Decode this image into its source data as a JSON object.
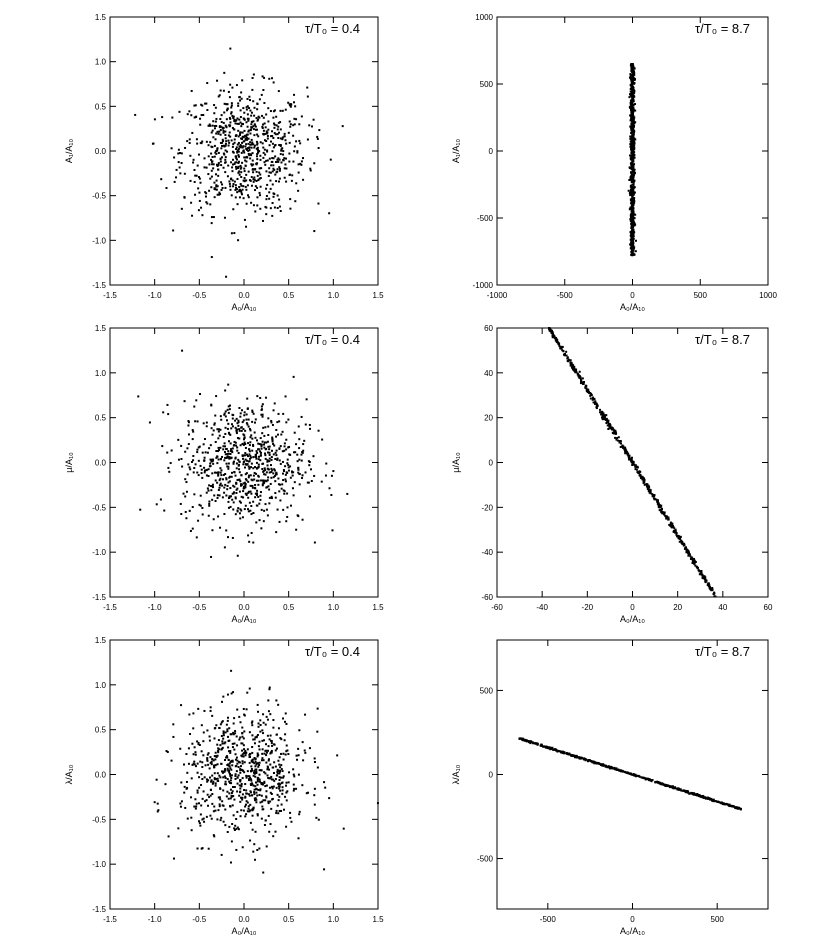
{
  "figure": {
    "panels": [
      {
        "id": "p1",
        "annotation": "τ/T₀ = 0.4",
        "xlabel": "A₀/A₁₀",
        "ylabel": "A₁/A₁₀"
      },
      {
        "id": "p2",
        "annotation": "τ/T₀ = 8.7",
        "xlabel": "A₀/A₁₀",
        "ylabel": "A₁/A₁₀"
      },
      {
        "id": "p3",
        "annotation": "τ/T₀ = 0.4",
        "xlabel": "A₀/A₁₀",
        "ylabel": "μ/A₁₀"
      },
      {
        "id": "p4",
        "annotation": "τ/T₀ = 8.7",
        "xlabel": "A₀/A₁₀",
        "ylabel": "μ/A₁₀"
      },
      {
        "id": "p5",
        "annotation": "τ/T₀ = 0.4",
        "xlabel": "A₀/A₁₀",
        "ylabel": "λ/A₁₀"
      },
      {
        "id": "p6",
        "annotation": "τ/T₀ = 8.7",
        "xlabel": "A₀/A₁₀",
        "ylabel": "λ/A₁₀"
      }
    ]
  },
  "chart_data": [
    {
      "type": "scatter",
      "title": "",
      "annotation": "τ/T₀ = 0.4",
      "xlabel": "A₀/A₁₀",
      "ylabel": "A₁/A₁₀",
      "xlim": [
        -1.5,
        1.5
      ],
      "ylim": [
        -1.5,
        1.5
      ],
      "xticks": [
        "-1.5",
        "-1.0",
        "-0.5",
        "0.0",
        "0.5",
        "1.0",
        "1.5"
      ],
      "yticks": [
        "-1.5",
        "-1.0",
        "-0.5",
        "0.0",
        "0.5",
        "1.0",
        "1.5"
      ],
      "grid": false,
      "distribution": {
        "shape": "isotropic cloud",
        "center": [
          0,
          0
        ],
        "spread": [
          0.35,
          0.35
        ],
        "n": 800
      }
    },
    {
      "type": "scatter",
      "title": "",
      "annotation": "τ/T₀ = 8.7",
      "xlabel": "A₀/A₁₀",
      "ylabel": "A₁/A₁₀",
      "xlim": [
        -1000,
        1000
      ],
      "ylim": [
        -1000,
        1000
      ],
      "xticks": [
        "-1000",
        "-500",
        "0",
        "500",
        "1000"
      ],
      "yticks": [
        "-1000",
        "-500",
        "0",
        "500",
        "1000"
      ],
      "grid": false,
      "distribution": {
        "shape": "narrow vertical band",
        "x_range": [
          -15,
          15
        ],
        "y_range": [
          -780,
          650
        ],
        "n": 800
      }
    },
    {
      "type": "scatter",
      "title": "",
      "annotation": "τ/T₀ = 0.4",
      "xlabel": "A₀/A₁₀",
      "ylabel": "μ/A₁₀",
      "xlim": [
        -1.5,
        1.5
      ],
      "ylim": [
        -1.5,
        1.5
      ],
      "xticks": [
        "-1.5",
        "-1.0",
        "-0.5",
        "0.0",
        "0.5",
        "1.0",
        "1.5"
      ],
      "yticks": [
        "-1.5",
        "-1.0",
        "-0.5",
        "0.0",
        "0.5",
        "1.0",
        "1.5"
      ],
      "grid": false,
      "distribution": {
        "shape": "isotropic cloud",
        "center": [
          0,
          0
        ],
        "spread": [
          0.35,
          0.35
        ],
        "n": 800
      }
    },
    {
      "type": "scatter",
      "title": "",
      "annotation": "τ/T₀ = 8.7",
      "xlabel": "A₀/A₁₀",
      "ylabel": "μ/A₁₀",
      "xlim": [
        -60,
        60
      ],
      "ylim": [
        -60,
        60
      ],
      "xticks": [
        "-60",
        "-40",
        "-20",
        "0",
        "20",
        "40",
        "60"
      ],
      "yticks": [
        "-60",
        "-40",
        "-20",
        "0",
        "20",
        "40",
        "60"
      ],
      "grid": false,
      "distribution": {
        "shape": "line",
        "from": [
          -37,
          60
        ],
        "to": [
          37,
          -60
        ],
        "n": 600
      }
    },
    {
      "type": "scatter",
      "title": "",
      "annotation": "τ/T₀ = 0.4",
      "xlabel": "A₀/A₁₀",
      "ylabel": "λ/A₁₀",
      "xlim": [
        -1.5,
        1.5
      ],
      "ylim": [
        -1.5,
        1.5
      ],
      "xticks": [
        "-1.5",
        "-1.0",
        "-0.5",
        "0.0",
        "0.5",
        "1.0",
        "1.5"
      ],
      "yticks": [
        "-1.5",
        "-1.0",
        "-0.5",
        "0.0",
        "0.5",
        "1.0",
        "1.5"
      ],
      "grid": false,
      "distribution": {
        "shape": "isotropic cloud",
        "center": [
          0,
          0
        ],
        "spread": [
          0.35,
          0.35
        ],
        "n": 800
      }
    },
    {
      "type": "scatter",
      "title": "",
      "annotation": "τ/T₀ = 8.7",
      "xlabel": "A₀/A₁₀",
      "ylabel": "λ/A₁₀",
      "xlim": [
        -800,
        800
      ],
      "ylim": [
        -800,
        800
      ],
      "xticks": [
        "-500",
        "0",
        "500"
      ],
      "yticks": [
        "-500",
        "0",
        "500"
      ],
      "grid": false,
      "distribution": {
        "shape": "line",
        "from": [
          -670,
          215
        ],
        "to": [
          640,
          -205
        ],
        "n": 600
      }
    }
  ]
}
